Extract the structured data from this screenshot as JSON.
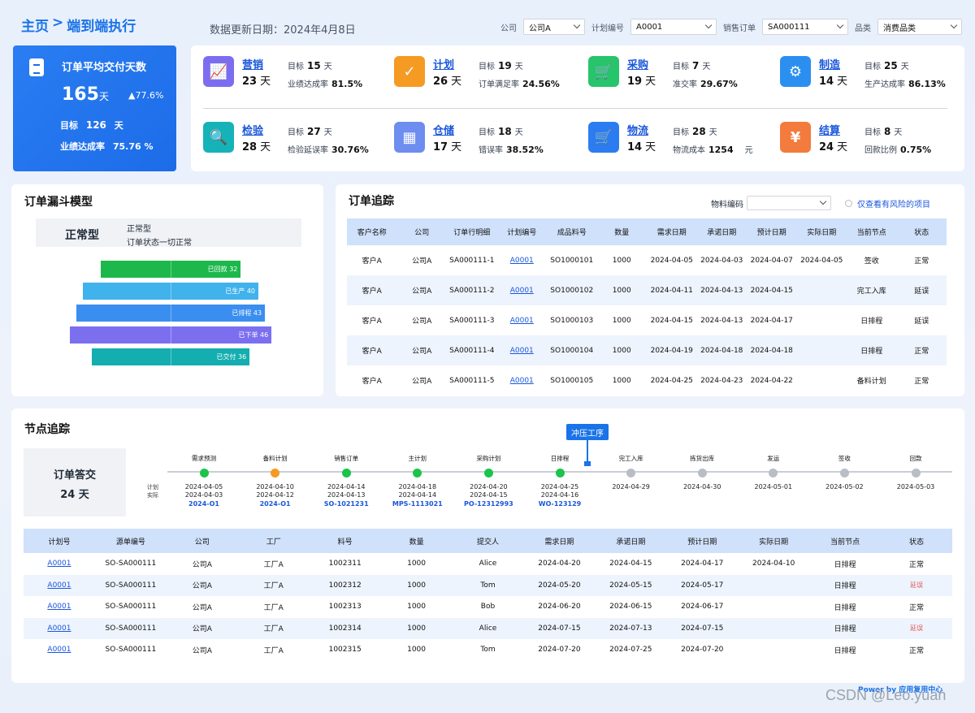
{
  "header": {
    "crumb_home": "主页",
    "crumb_sep": ">",
    "crumb_current": "端到端执行",
    "update_label": "数据更新日期：2024年4月8日",
    "filters": [
      {
        "label": "公司",
        "value": "公司A"
      },
      {
        "label": "计划编号",
        "value": "A0001"
      },
      {
        "label": "销售订单",
        "value": "SA000111"
      },
      {
        "label": "品类",
        "value": "消费品类"
      }
    ]
  },
  "summary": {
    "title": "订单平均交付天数",
    "value": "165",
    "unit": "天",
    "delta": "▲77.6%",
    "target_label": "目标",
    "target_value": "126",
    "target_unit": "天",
    "rate_label": "业绩达成率",
    "rate_value": "75.76 %"
  },
  "kpis": [
    {
      "name": "营销",
      "days": "23",
      "unit": "天",
      "goal_label": "目标",
      "goal": "15",
      "goal_unit": "天",
      "rate_label": "业绩达成率",
      "rate": "81.5%",
      "color": "#7c6df0",
      "glyph": "📈"
    },
    {
      "name": "计划",
      "days": "26",
      "unit": "天",
      "goal_label": "目标",
      "goal": "19",
      "goal_unit": "天",
      "rate_label": "订单满足率",
      "rate": "24.56%",
      "color": "#f59a23",
      "glyph": "✓"
    },
    {
      "name": "采购",
      "days": "19",
      "unit": "天",
      "goal_label": "目标",
      "goal": "7",
      "goal_unit": "天",
      "rate_label": "准交率",
      "rate": "29.67%",
      "color": "#27c46b",
      "glyph": "🛒"
    },
    {
      "name": "制造",
      "days": "14",
      "unit": "天",
      "goal_label": "目标",
      "goal": "25",
      "goal_unit": "天",
      "rate_label": "生产达成率",
      "rate": "86.13%",
      "color": "#2b8ff0",
      "glyph": "⚙"
    },
    {
      "name": "检验",
      "days": "28",
      "unit": "天",
      "goal_label": "目标",
      "goal": "27",
      "goal_unit": "天",
      "rate_label": "检验延误率",
      "rate": "30.76%",
      "color": "#15b3b8",
      "glyph": "🔍"
    },
    {
      "name": "仓储",
      "days": "17",
      "unit": "天",
      "goal_label": "目标",
      "goal": "18",
      "goal_unit": "天",
      "rate_label": "错误率",
      "rate": "38.52%",
      "color": "#6d8df0",
      "glyph": "▦"
    },
    {
      "name": "物流",
      "days": "14",
      "unit": "天",
      "goal_label": "目标",
      "goal": "28",
      "goal_unit": "天",
      "rate_label": "物流成本",
      "rate": "1254",
      "rate_suffix": "元",
      "color": "#2b7cf0",
      "glyph": "🛒"
    },
    {
      "name": "结算",
      "days": "24",
      "unit": "天",
      "goal_label": "目标",
      "goal": "8",
      "goal_unit": "天",
      "rate_label": "回款比例",
      "rate": "0.75%",
      "color": "#f27b3d",
      "glyph": "¥"
    }
  ],
  "funnel": {
    "title": "订单漏斗模型",
    "type_label": "正常型",
    "desc1": "正常型",
    "desc2": "订单状态一切正常",
    "stages": [
      {
        "label": "已回款",
        "value": 32,
        "color": "#1cb84b"
      },
      {
        "label": "已生产",
        "value": 40,
        "color": "#40b2ec"
      },
      {
        "label": "已排程",
        "value": 43,
        "color": "#3a8ef0"
      },
      {
        "label": "已下单",
        "value": 46,
        "color": "#7b6ff0"
      },
      {
        "label": "已交付",
        "value": 36,
        "color": "#14aeb0"
      }
    ]
  },
  "orders": {
    "title": "订单追踪",
    "material_label": "物料编码",
    "risk_label": "仅查看有风险的项目",
    "columns": [
      "客户名称",
      "公司",
      "订单行明细",
      "计划编号",
      "成品料号",
      "数量",
      "需求日期",
      "承诺日期",
      "预计日期",
      "实际日期",
      "当前节点",
      "状态"
    ],
    "rows": [
      [
        "客户A",
        "公司A",
        "SA000111-1",
        "A0001",
        "SO1000101",
        "1000",
        "2024-04-05",
        "2024-04-03",
        "2024-04-07",
        "2024-04-05",
        "签收",
        "正常"
      ],
      [
        "客户A",
        "公司A",
        "SA000111-2",
        "A0001",
        "SO1000102",
        "1000",
        "2024-04-11",
        "2024-04-13",
        "2024-04-15",
        "",
        "完工入库",
        "延误"
      ],
      [
        "客户A",
        "公司A",
        "SA000111-3",
        "A0001",
        "SO1000103",
        "1000",
        "2024-04-15",
        "2024-04-13",
        "2024-04-17",
        "",
        "日排程",
        "延误"
      ],
      [
        "客户A",
        "公司A",
        "SA000111-4",
        "A0001",
        "SO1000104",
        "1000",
        "2024-04-19",
        "2024-04-18",
        "2024-04-18",
        "",
        "日排程",
        "正常"
      ],
      [
        "客户A",
        "公司A",
        "SA000111-5",
        "A0001",
        "SO1000105",
        "1000",
        "2024-04-25",
        "2024-04-23",
        "2024-04-22",
        "",
        "备料计划",
        "正常"
      ]
    ]
  },
  "nodes": {
    "title": "节点追踪",
    "left_title": "订单答交",
    "left_value": "24 天",
    "plan_label": "计划",
    "actual_label": "实际",
    "tooltip": "冲压工序",
    "steps": [
      {
        "name": "需求预测",
        "state": "done",
        "plan": "2024-04-05",
        "actual": "2024-04-03",
        "code": "2024-O1"
      },
      {
        "name": "备料计划",
        "state": "warn",
        "plan": "2024-04-10",
        "actual": "2024-04-12",
        "code": "2024-O1"
      },
      {
        "name": "销售订单",
        "state": "done",
        "plan": "2024-04-14",
        "actual": "2024-04-13",
        "code": "SO-1021231"
      },
      {
        "name": "主计划",
        "state": "done",
        "plan": "2024-04-18",
        "actual": "2024-04-14",
        "code": "MPS-1113021"
      },
      {
        "name": "采购计划",
        "state": "done",
        "plan": "2024-04-20",
        "actual": "2024-04-15",
        "code": "PO-12312993"
      },
      {
        "name": "日排程",
        "state": "done",
        "plan": "2024-04-25",
        "actual": "2024-04-16",
        "code": "WO-123129"
      },
      {
        "name": "完工入库",
        "state": "todo",
        "plan": "2024-04-29",
        "actual": "",
        "code": ""
      },
      {
        "name": "拣货出库",
        "state": "todo",
        "plan": "2024-04-30",
        "actual": "",
        "code": ""
      },
      {
        "name": "发运",
        "state": "todo",
        "plan": "2024-05-01",
        "actual": "",
        "code": ""
      },
      {
        "name": "签收",
        "state": "todo",
        "plan": "2024-05-02",
        "actual": "",
        "code": ""
      },
      {
        "name": "回款",
        "state": "todo",
        "plan": "2024-05-03",
        "actual": "",
        "code": ""
      }
    ],
    "columns": [
      "计划号",
      "源单编号",
      "公司",
      "工厂",
      "料号",
      "数量",
      "提交人",
      "需求日期",
      "承诺日期",
      "预计日期",
      "实际日期",
      "当前节点",
      "状态"
    ],
    "rows": [
      [
        "A0001",
        "SO-SA000111",
        "公司A",
        "工厂A",
        "1002311",
        "1000",
        "Alice",
        "2024-04-20",
        "2024-04-15",
        "2024-04-17",
        "2024-04-10",
        "日排程",
        "正常"
      ],
      [
        "A0001",
        "SO-SA000111",
        "公司A",
        "工厂A",
        "1002312",
        "1000",
        "Tom",
        "2024-05-20",
        "2024-05-15",
        "2024-05-17",
        "",
        "日排程",
        "延误"
      ],
      [
        "A0001",
        "SO-SA000111",
        "公司A",
        "工厂A",
        "1002313",
        "1000",
        "Bob",
        "2024-06-20",
        "2024-06-15",
        "2024-06-17",
        "",
        "日排程",
        "正常"
      ],
      [
        "A0001",
        "SO-SA000111",
        "公司A",
        "工厂A",
        "1002314",
        "1000",
        "Alice",
        "2024-07-15",
        "2024-07-13",
        "2024-07-15",
        "",
        "日排程",
        "延误"
      ],
      [
        "A0001",
        "SO-SA000111",
        "公司A",
        "工厂A",
        "1002315",
        "1000",
        "Tom",
        "2024-07-20",
        "2024-07-25",
        "2024-07-20",
        "",
        "日排程",
        "正常"
      ]
    ]
  },
  "footer": {
    "powered": "Power by 应用复用中心",
    "watermark": "CSDN @Leo.yuan"
  },
  "colors": {
    "done": "#1cc44a",
    "warn": "#f59a23",
    "todo": "#b9bec6",
    "accent": "#1a73e8"
  }
}
